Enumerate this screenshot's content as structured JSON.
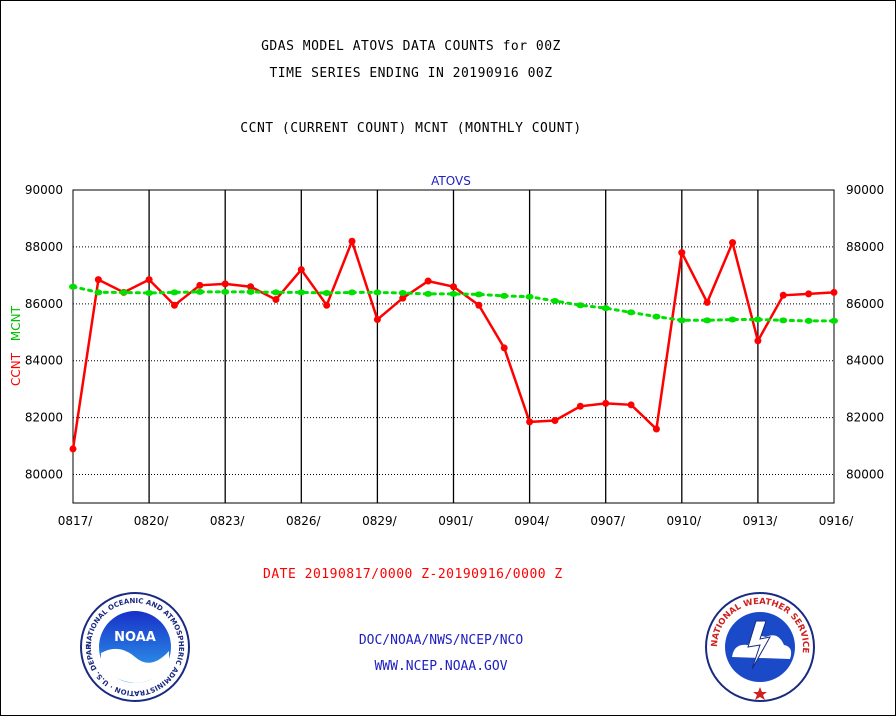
{
  "header": {
    "line1": "GDAS MODEL ATOVS DATA COUNTS for 00Z",
    "line2": "TIME SERIES ENDING IN 20190916 00Z",
    "line3": "CCNT (CURRENT COUNT) MCNT (MONTHLY COUNT)"
  },
  "chart_data": {
    "type": "line",
    "title": "ATOVS",
    "ylabel_primary": "CCNT",
    "ylabel_secondary": "MCNT",
    "ylim": [
      79000,
      90000
    ],
    "y_ticks": [
      "80000",
      "82000",
      "84000",
      "86000",
      "88000",
      "90000"
    ],
    "x_tick_labels": [
      "0817/",
      "0820/",
      "0823/",
      "0826/",
      "0829/",
      "0901/",
      "0904/",
      "0907/",
      "0910/",
      "0913/",
      "0916/"
    ],
    "x_dates": [
      "0817",
      "0818",
      "0819",
      "0820",
      "0821",
      "0822",
      "0823",
      "0824",
      "0825",
      "0826",
      "0827",
      "0828",
      "0829",
      "0830",
      "0831",
      "0901",
      "0902",
      "0903",
      "0904",
      "0905",
      "0906",
      "0907",
      "0908",
      "0909",
      "0910",
      "0911",
      "0912",
      "0913",
      "0914",
      "0915",
      "0916"
    ],
    "series": [
      {
        "name": "CCNT",
        "color": "#ff0000",
        "style": "solid",
        "values": [
          80900,
          86850,
          86400,
          86850,
          85950,
          86650,
          86700,
          86600,
          86150,
          87200,
          85950,
          88200,
          85450,
          86200,
          86800,
          86600,
          85950,
          84450,
          81850,
          81900,
          82400,
          82500,
          82450,
          81600,
          87800,
          86050,
          88150,
          84700,
          86300,
          86350,
          86400
        ]
      },
      {
        "name": "MCNT",
        "color": "#00e000",
        "style": "dotted",
        "values": [
          86600,
          86400,
          86400,
          86380,
          86400,
          86420,
          86420,
          86420,
          86400,
          86400,
          86380,
          86400,
          86400,
          86380,
          86350,
          86350,
          86330,
          86280,
          86250,
          86100,
          85950,
          85850,
          85700,
          85550,
          85420,
          85420,
          85450,
          85450,
          85420,
          85400,
          85400
        ]
      }
    ],
    "grid": true
  },
  "footer": {
    "date_range": "DATE 20190817/0000 Z-20190916/0000 Z",
    "org": "DOC/NOAA/NWS/NCEP/NCO",
    "url": "WWW.NCEP.NOAA.GOV"
  },
  "logos": {
    "noaa": {
      "icon": "noaa-logo",
      "text": "NOAA",
      "ring_text": "NATIONAL OCEANIC AND ATMOSPHERIC ADMINISTRATION · U.S. DEPARTMENT OF COMMERCE"
    },
    "nws": {
      "icon": "nws-logo",
      "ring_text": "NATIONAL WEATHER SERVICE"
    }
  }
}
